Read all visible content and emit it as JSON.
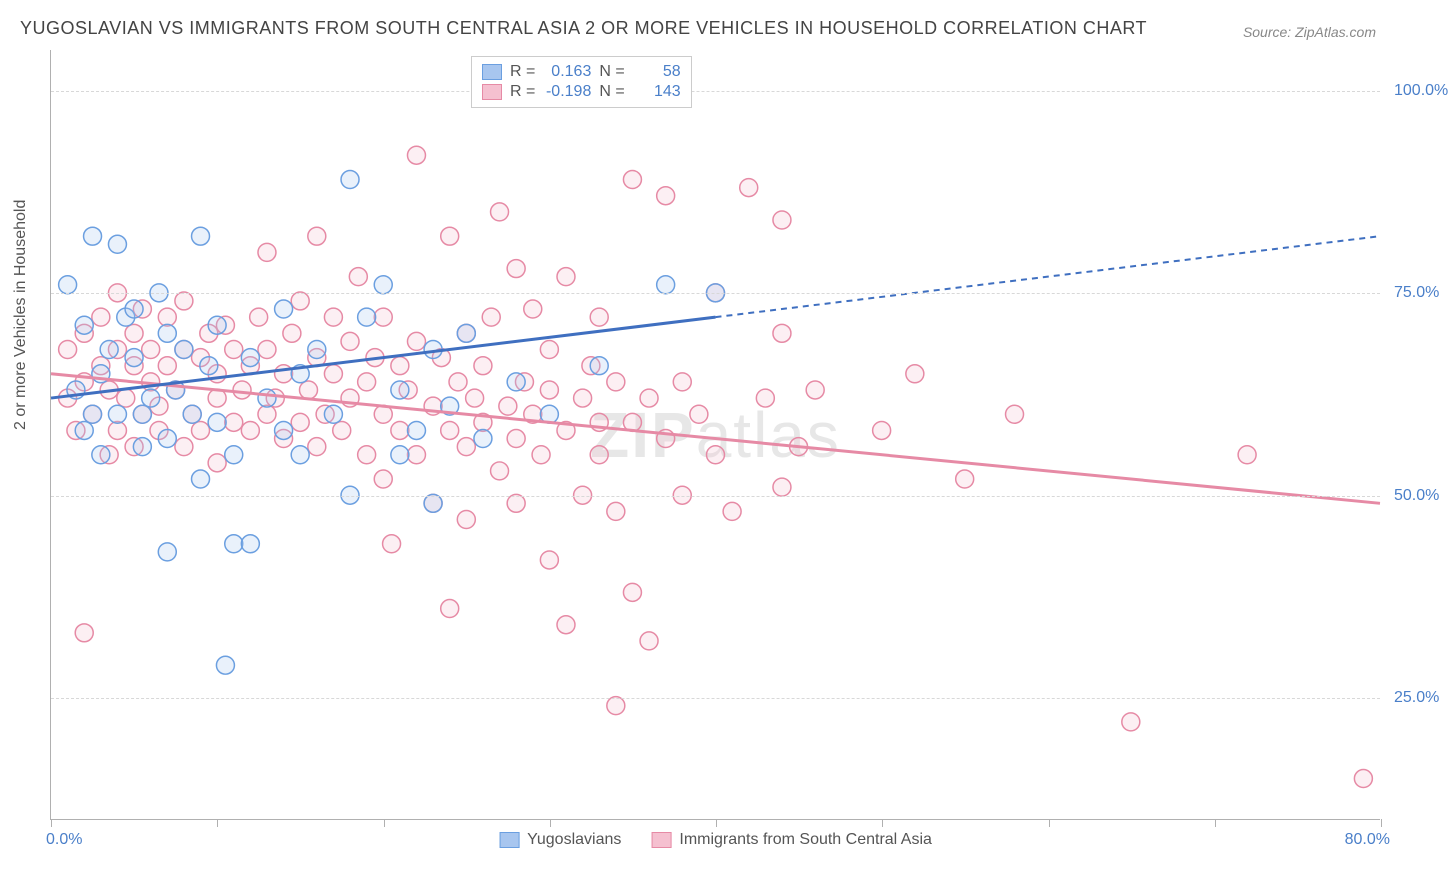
{
  "title": "YUGOSLAVIAN VS IMMIGRANTS FROM SOUTH CENTRAL ASIA 2 OR MORE VEHICLES IN HOUSEHOLD CORRELATION CHART",
  "source": "Source: ZipAtlas.com",
  "ylabel": "2 or more Vehicles in Household",
  "watermark": "ZIPatlas",
  "chart": {
    "type": "scatter",
    "xlim": [
      0,
      80
    ],
    "ylim": [
      10,
      105
    ],
    "x_tick_label_min": "0.0%",
    "x_tick_label_max": "80.0%",
    "x_ticks": [
      0,
      10,
      20,
      30,
      40,
      50,
      60,
      70,
      80
    ],
    "y_gridlines": [
      25,
      50,
      75,
      100
    ],
    "y_tick_labels": [
      "25.0%",
      "50.0%",
      "75.0%",
      "100.0%"
    ],
    "grid_color": "#d8d8d8",
    "axis_color": "#b0b0b0",
    "tick_label_color": "#4a7fc9",
    "background_color": "#ffffff",
    "marker_radius": 9,
    "marker_stroke_width": 1.5,
    "marker_fill_opacity": 0.25
  },
  "series": [
    {
      "name": "Yugoslavians",
      "color_stroke": "#6b9fe0",
      "color_fill": "#a8c6ef",
      "r_label": "R =",
      "r_value": "0.163",
      "n_label": "N =",
      "n_value": "58",
      "trend": {
        "x1": 0,
        "y1": 62,
        "x2": 40,
        "y2": 72,
        "x3": 80,
        "y3": 82
      },
      "points": [
        [
          1,
          76
        ],
        [
          1.5,
          63
        ],
        [
          2,
          58
        ],
        [
          2,
          71
        ],
        [
          2.5,
          60
        ],
        [
          2.5,
          82
        ],
        [
          3,
          65
        ],
        [
          3,
          55
        ],
        [
          3.5,
          68
        ],
        [
          4,
          60
        ],
        [
          4,
          81
        ],
        [
          4.5,
          72
        ],
        [
          5,
          67
        ],
        [
          5,
          73
        ],
        [
          5.5,
          60
        ],
        [
          5.5,
          56
        ],
        [
          6,
          62
        ],
        [
          6.5,
          75
        ],
        [
          7,
          57
        ],
        [
          7,
          70
        ],
        [
          7,
          43
        ],
        [
          7.5,
          63
        ],
        [
          8,
          68
        ],
        [
          8.5,
          60
        ],
        [
          9,
          82
        ],
        [
          9,
          52
        ],
        [
          9.5,
          66
        ],
        [
          10,
          59
        ],
        [
          10,
          71
        ],
        [
          10.5,
          29
        ],
        [
          11,
          55
        ],
        [
          11,
          44
        ],
        [
          12,
          44
        ],
        [
          12,
          67
        ],
        [
          13,
          62
        ],
        [
          14,
          58
        ],
        [
          14,
          73
        ],
        [
          15,
          65
        ],
        [
          15,
          55
        ],
        [
          16,
          68
        ],
        [
          17,
          60
        ],
        [
          18,
          89
        ],
        [
          18,
          50
        ],
        [
          19,
          72
        ],
        [
          20,
          76
        ],
        [
          21,
          63
        ],
        [
          21,
          55
        ],
        [
          22,
          58
        ],
        [
          23,
          68
        ],
        [
          23,
          49
        ],
        [
          24,
          61
        ],
        [
          25,
          70
        ],
        [
          26,
          57
        ],
        [
          28,
          64
        ],
        [
          30,
          60
        ],
        [
          33,
          66
        ],
        [
          37,
          76
        ],
        [
          40,
          75
        ]
      ]
    },
    {
      "name": "Immigrants from South Central Asia",
      "color_stroke": "#e68aa5",
      "color_fill": "#f5c0d0",
      "r_label": "R =",
      "r_value": "-0.198",
      "n_label": "N =",
      "n_value": "143",
      "trend": {
        "x1": 0,
        "y1": 65,
        "x2": 80,
        "y2": 49
      },
      "points": [
        [
          1,
          62
        ],
        [
          1,
          68
        ],
        [
          1.5,
          58
        ],
        [
          2,
          64
        ],
        [
          2,
          70
        ],
        [
          2,
          33
        ],
        [
          2.5,
          60
        ],
        [
          3,
          66
        ],
        [
          3,
          72
        ],
        [
          3.5,
          55
        ],
        [
          3.5,
          63
        ],
        [
          4,
          68
        ],
        [
          4,
          58
        ],
        [
          4,
          75
        ],
        [
          4.5,
          62
        ],
        [
          5,
          66
        ],
        [
          5,
          70
        ],
        [
          5,
          56
        ],
        [
          5.5,
          60
        ],
        [
          5.5,
          73
        ],
        [
          6,
          64
        ],
        [
          6,
          68
        ],
        [
          6.5,
          58
        ],
        [
          6.5,
          61
        ],
        [
          7,
          72
        ],
        [
          7,
          66
        ],
        [
          7.5,
          63
        ],
        [
          8,
          68
        ],
        [
          8,
          56
        ],
        [
          8,
          74
        ],
        [
          8.5,
          60
        ],
        [
          9,
          58
        ],
        [
          9,
          67
        ],
        [
          9.5,
          70
        ],
        [
          10,
          62
        ],
        [
          10,
          65
        ],
        [
          10,
          54
        ],
        [
          10.5,
          71
        ],
        [
          11,
          59
        ],
        [
          11,
          68
        ],
        [
          11.5,
          63
        ],
        [
          12,
          66
        ],
        [
          12,
          58
        ],
        [
          12.5,
          72
        ],
        [
          13,
          60
        ],
        [
          13,
          68
        ],
        [
          13,
          80
        ],
        [
          13.5,
          62
        ],
        [
          14,
          57
        ],
        [
          14,
          65
        ],
        [
          14.5,
          70
        ],
        [
          15,
          59
        ],
        [
          15,
          74
        ],
        [
          15.5,
          63
        ],
        [
          16,
          67
        ],
        [
          16,
          56
        ],
        [
          16,
          82
        ],
        [
          16.5,
          60
        ],
        [
          17,
          65
        ],
        [
          17,
          72
        ],
        [
          17.5,
          58
        ],
        [
          18,
          62
        ],
        [
          18,
          69
        ],
        [
          18.5,
          77
        ],
        [
          19,
          55
        ],
        [
          19,
          64
        ],
        [
          19.5,
          67
        ],
        [
          20,
          60
        ],
        [
          20,
          72
        ],
        [
          20,
          52
        ],
        [
          20.5,
          44
        ],
        [
          21,
          58
        ],
        [
          21,
          66
        ],
        [
          21.5,
          63
        ],
        [
          22,
          69
        ],
        [
          22,
          55
        ],
        [
          22,
          92
        ],
        [
          23,
          61
        ],
        [
          23,
          49
        ],
        [
          23.5,
          67
        ],
        [
          24,
          58
        ],
        [
          24,
          82
        ],
        [
          24,
          36
        ],
        [
          24.5,
          64
        ],
        [
          25,
          70
        ],
        [
          25,
          56
        ],
        [
          25,
          47
        ],
        [
          25.5,
          62
        ],
        [
          26,
          59
        ],
        [
          26,
          66
        ],
        [
          26.5,
          72
        ],
        [
          27,
          85
        ],
        [
          27,
          53
        ],
        [
          27.5,
          61
        ],
        [
          28,
          57
        ],
        [
          28,
          78
        ],
        [
          28,
          49
        ],
        [
          28.5,
          64
        ],
        [
          29,
          60
        ],
        [
          29,
          73
        ],
        [
          29.5,
          55
        ],
        [
          30,
          63
        ],
        [
          30,
          68
        ],
        [
          30,
          42
        ],
        [
          31,
          58
        ],
        [
          31,
          77
        ],
        [
          31,
          34
        ],
        [
          32,
          62
        ],
        [
          32,
          50
        ],
        [
          32.5,
          66
        ],
        [
          33,
          55
        ],
        [
          33,
          72
        ],
        [
          33,
          59
        ],
        [
          34,
          48
        ],
        [
          34,
          64
        ],
        [
          34,
          24
        ],
        [
          35,
          59
        ],
        [
          35,
          89
        ],
        [
          35,
          38
        ],
        [
          36,
          62
        ],
        [
          36,
          32
        ],
        [
          37,
          57
        ],
        [
          37,
          87
        ],
        [
          38,
          64
        ],
        [
          38,
          50
        ],
        [
          39,
          60
        ],
        [
          40,
          55
        ],
        [
          40,
          75
        ],
        [
          41,
          48
        ],
        [
          42,
          88
        ],
        [
          43,
          62
        ],
        [
          44,
          70
        ],
        [
          44,
          51
        ],
        [
          44,
          84
        ],
        [
          45,
          56
        ],
        [
          46,
          63
        ],
        [
          50,
          58
        ],
        [
          52,
          65
        ],
        [
          55,
          52
        ],
        [
          58,
          60
        ],
        [
          65,
          22
        ],
        [
          72,
          55
        ],
        [
          79,
          15
        ]
      ]
    }
  ],
  "legend": {
    "series1_label": "Yugoslavians",
    "series2_label": "Immigrants from South Central Asia"
  }
}
